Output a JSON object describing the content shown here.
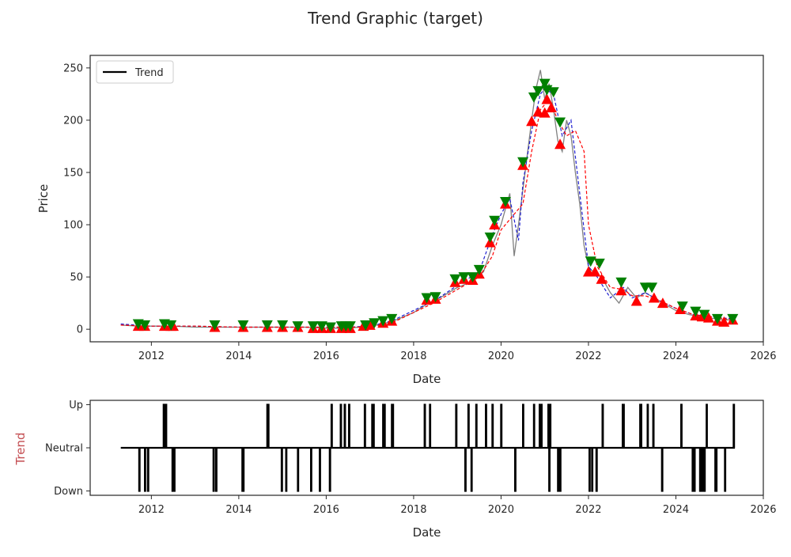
{
  "figure": {
    "title": "Trend Graphic (target)"
  },
  "chart_data": [
    {
      "type": "line",
      "xlabel": "Date",
      "ylabel": "Price",
      "xlim": [
        2010.6,
        2026.0
      ],
      "ylim": [
        -12,
        262
      ],
      "xticks": [
        2012,
        2014,
        2016,
        2018,
        2020,
        2022,
        2024,
        2026
      ],
      "xtick_labels": [
        "2012",
        "2014",
        "2016",
        "2018",
        "2020",
        "2022",
        "2024",
        "2026"
      ],
      "yticks": [
        0,
        50,
        100,
        150,
        200,
        250
      ],
      "ytick_labels": [
        "0",
        "50",
        "100",
        "150",
        "200",
        "250"
      ],
      "legend": {
        "position": "top-left",
        "entries": [
          {
            "label": "Trend",
            "color": "#000000"
          }
        ]
      },
      "series": [
        {
          "style": "gray-solid",
          "color": "#808080",
          "x": [
            2011.3,
            2011.7,
            2012.0,
            2012.5,
            2013.0,
            2013.5,
            2014.0,
            2014.5,
            2015.0,
            2015.5,
            2016.0,
            2016.5,
            2017.0,
            2017.3,
            2017.6,
            2018.0,
            2018.3,
            2018.6,
            2019.0,
            2019.3,
            2019.6,
            2019.8,
            2020.0,
            2020.2,
            2020.3,
            2020.4,
            2020.55,
            2020.7,
            2020.8,
            2020.9,
            2021.0,
            2021.1,
            2021.2,
            2021.3,
            2021.4,
            2021.5,
            2021.6,
            2021.7,
            2021.8,
            2021.9,
            2022.0,
            2022.1,
            2022.3,
            2022.5,
            2022.7,
            2022.9,
            2023.1,
            2023.3,
            2023.5,
            2023.7,
            2024.0,
            2024.3,
            2024.6,
            2024.9,
            2025.1,
            2025.3
          ],
          "y": [
            4,
            3,
            3,
            3,
            2,
            2,
            2,
            2,
            2,
            2,
            1,
            1,
            3,
            5,
            9,
            16,
            24,
            30,
            40,
            45,
            55,
            80,
            100,
            130,
            70,
            100,
            150,
            200,
            230,
            248,
            220,
            235,
            210,
            180,
            170,
            200,
            185,
            150,
            120,
            80,
            60,
            55,
            50,
            35,
            25,
            40,
            30,
            35,
            30,
            25,
            18,
            14,
            12,
            10,
            9,
            9
          ]
        },
        {
          "style": "blue-dashed",
          "color": "#1f1fd1",
          "x": [
            2011.3,
            2012.0,
            2013.0,
            2014.0,
            2015.0,
            2016.0,
            2016.5,
            2017.0,
            2017.5,
            2018.0,
            2018.5,
            2019.0,
            2019.5,
            2019.8,
            2020.0,
            2020.2,
            2020.4,
            2020.5,
            2020.7,
            2020.9,
            2021.0,
            2021.2,
            2021.4,
            2021.6,
            2021.8,
            2022.0,
            2022.2,
            2022.5,
            2022.8,
            2023.0,
            2023.3,
            2023.6,
            2024.0,
            2024.4,
            2024.8,
            2025.3
          ],
          "y": [
            5,
            3,
            3,
            2,
            2,
            2,
            2,
            3,
            8,
            18,
            28,
            42,
            55,
            90,
            110,
            125,
            85,
            140,
            190,
            225,
            230,
            225,
            185,
            200,
            130,
            60,
            50,
            30,
            40,
            30,
            35,
            28,
            20,
            14,
            12,
            10
          ]
        },
        {
          "style": "red-dashed",
          "color": "#ff0000",
          "x": [
            2011.3,
            2012.0,
            2013.0,
            2014.0,
            2015.0,
            2016.0,
            2016.5,
            2017.0,
            2017.5,
            2018.0,
            2018.5,
            2019.0,
            2019.5,
            2019.8,
            2020.0,
            2020.3,
            2020.5,
            2020.7,
            2020.9,
            2021.1,
            2021.3,
            2021.5,
            2021.7,
            2021.9,
            2022.0,
            2022.2,
            2022.5,
            2022.8,
            2023.0,
            2023.3,
            2023.6,
            2024.0,
            2024.4,
            2024.8,
            2025.3
          ],
          "y": [
            4,
            3,
            3,
            2,
            2,
            2,
            2,
            2,
            6,
            16,
            26,
            38,
            50,
            70,
            95,
            110,
            120,
            170,
            210,
            220,
            200,
            185,
            190,
            170,
            100,
            60,
            40,
            38,
            32,
            32,
            28,
            20,
            14,
            12,
            9
          ]
        }
      ],
      "markers_down": {
        "color": "#008000",
        "shape": "triangle-down",
        "x": [
          2011.7,
          2011.85,
          2012.3,
          2012.45,
          2013.45,
          2014.1,
          2014.65,
          2015.0,
          2015.35,
          2015.7,
          2015.9,
          2016.1,
          2016.35,
          2016.45,
          2016.55,
          2016.9,
          2017.1,
          2017.3,
          2017.5,
          2018.3,
          2018.5,
          2018.95,
          2019.15,
          2019.35,
          2019.5,
          2019.75,
          2019.85,
          2020.1,
          2020.5,
          2020.75,
          2020.85,
          2021.0,
          2021.05,
          2021.2,
          2021.35,
          2022.05,
          2022.25,
          2022.75,
          2023.3,
          2023.45,
          2024.15,
          2024.45,
          2024.65,
          2024.95,
          2025.3
        ],
        "y": [
          5,
          4,
          5,
          4,
          4,
          4,
          4,
          4,
          3,
          3,
          3,
          2,
          3,
          3,
          3,
          4,
          6,
          8,
          10,
          30,
          31,
          48,
          50,
          50,
          57,
          88,
          104,
          122,
          160,
          222,
          228,
          235,
          229,
          227,
          198,
          65,
          63,
          45,
          40,
          40,
          22,
          17,
          14,
          10,
          10
        ]
      },
      "markers_up": {
        "color": "#ff0000",
        "shape": "triangle-up",
        "x": [
          2011.7,
          2011.85,
          2012.3,
          2012.45,
          2012.5,
          2013.45,
          2014.1,
          2014.65,
          2015.0,
          2015.35,
          2015.7,
          2015.9,
          2016.1,
          2016.35,
          2016.55,
          2016.85,
          2017.0,
          2017.3,
          2017.5,
          2018.3,
          2018.5,
          2018.95,
          2019.15,
          2019.35,
          2019.5,
          2019.75,
          2019.85,
          2020.1,
          2020.5,
          2020.7,
          2020.85,
          2021.0,
          2021.05,
          2021.15,
          2021.35,
          2022.0,
          2022.15,
          2022.3,
          2022.75,
          2023.1,
          2023.5,
          2023.7,
          2024.1,
          2024.45,
          2024.6,
          2024.75,
          2024.95,
          2025.1,
          2025.3
        ],
        "y": [
          3,
          3,
          3,
          3,
          3,
          2,
          2,
          2,
          2,
          2,
          1,
          1,
          1,
          1,
          1,
          3,
          4,
          6,
          8,
          28,
          29,
          45,
          48,
          47,
          53,
          83,
          100,
          120,
          157,
          199,
          208,
          207,
          220,
          212,
          177,
          55,
          55,
          48,
          37,
          27,
          30,
          25,
          19,
          13,
          12,
          11,
          8,
          7,
          9
        ]
      }
    },
    {
      "type": "line",
      "xlabel": "Date",
      "ylabel": "Trend",
      "ylabel_color": "#c44e52",
      "xlim": [
        2010.6,
        2026.0
      ],
      "ylim": [
        -1.1,
        1.1
      ],
      "xticks": [
        2012,
        2014,
        2016,
        2018,
        2020,
        2022,
        2024,
        2026
      ],
      "xtick_labels": [
        "2012",
        "2014",
        "2016",
        "2018",
        "2020",
        "2022",
        "2024",
        "2026"
      ],
      "yticks": [
        -1,
        0,
        1
      ],
      "ytick_labels": [
        "Down",
        "Neutral",
        "Up"
      ],
      "x_start": 2011.3,
      "x_end": 2025.35,
      "neutral_value": 0,
      "up_spikes": [
        2012.28,
        2012.33,
        2014.65,
        2014.67,
        2016.12,
        2016.33,
        2016.42,
        2016.52,
        2016.88,
        2017.05,
        2017.08,
        2017.3,
        2017.33,
        2017.5,
        2017.52,
        2018.25,
        2018.37,
        2018.97,
        2019.25,
        2019.43,
        2019.65,
        2019.8,
        2020.0,
        2020.5,
        2020.75,
        2020.88,
        2020.92,
        2021.08,
        2021.12,
        2022.32,
        2022.78,
        2022.8,
        2023.18,
        2023.2,
        2023.35,
        2023.48,
        2024.12,
        2024.7,
        2025.32
      ],
      "down_spikes": [
        2011.72,
        2011.85,
        2011.92,
        2012.48,
        2012.52,
        2013.42,
        2013.48,
        2014.08,
        2014.1,
        2014.98,
        2015.08,
        2015.35,
        2015.65,
        2015.85,
        2016.08,
        2019.18,
        2019.32,
        2020.32,
        2021.1,
        2021.3,
        2021.35,
        2022.02,
        2022.08,
        2022.18,
        2023.68,
        2024.38,
        2024.42,
        2024.55,
        2024.6,
        2024.65,
        2024.9,
        2024.92,
        2025.12
      ]
    }
  ]
}
